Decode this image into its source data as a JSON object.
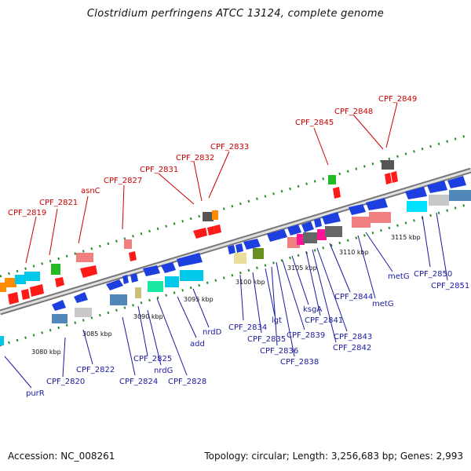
{
  "title": "Clostridium perfringens ATCC 13124, complete genome",
  "accession": "Accession: NC_008261",
  "topology": "Topology: circular; Length: 3,256,683 bp; Genes: 2,993",
  "ticks": [
    "3080 kbp",
    "3085 kbp",
    "3090 kbp",
    "3095 kbp",
    "3100 kbp",
    "3105 kbp",
    "3110 kbp",
    "3115 kbp"
  ],
  "labels_top": [
    "CPF_2819",
    "CPF_2821",
    "asnC",
    "CPF_2827",
    "CPF_2831",
    "CPF_2832",
    "CPF_2833",
    "CPF_2845",
    "CPF_2848",
    "CPF_2849"
  ],
  "labels_bottom": [
    "purR",
    "CPF_2820",
    "CPF_2822",
    "CPF_2824",
    "CPF_2825",
    "nrdG",
    "CPF_2828",
    "add",
    "nrdD",
    "CPF_2834",
    "CPF_2835",
    "lgt",
    "CPF_2836",
    "CPF_2838",
    "CPF_2839",
    "ksgA",
    "CPF_2841",
    "CPF_2842",
    "CPF_2843",
    "CPF_2844",
    "metG",
    "metG",
    "CPF_2850",
    "CPF_2851"
  ],
  "colors": {
    "backbone": "#888888",
    "forward_gene": "#1e3fe0",
    "reverse_gene": "#ff1a1a",
    "label_top": "#cc0000",
    "label_bottom": "#1a1aa0",
    "dot": "#2a8a2a"
  }
}
